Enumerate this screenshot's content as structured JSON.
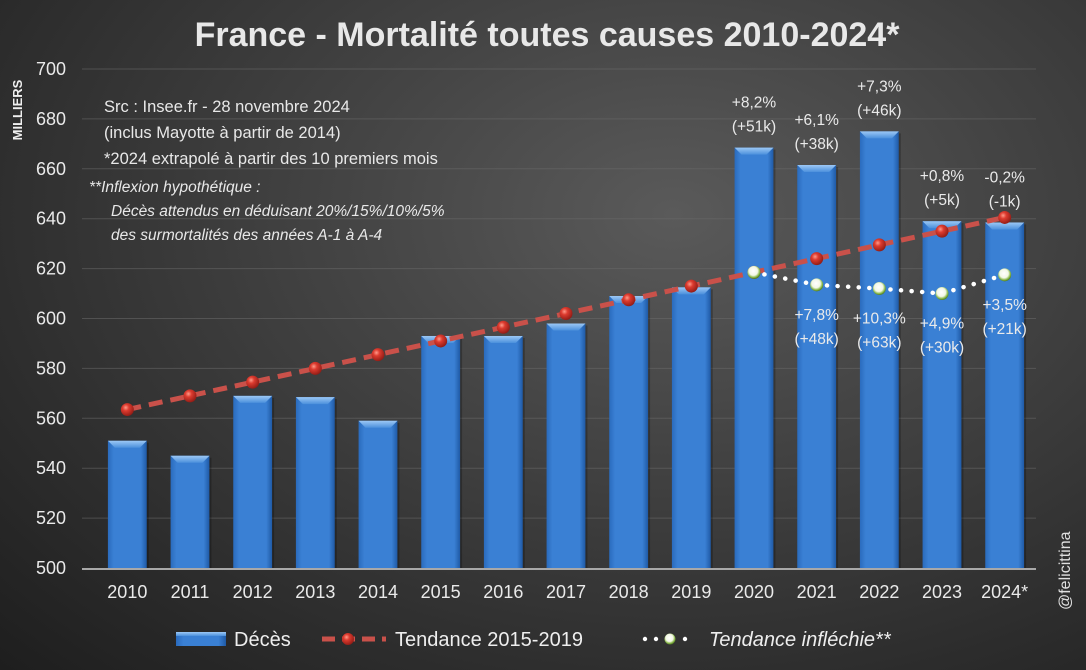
{
  "chart_data": {
    "type": "bar",
    "title": "France - Mortalité toutes causes 2010-2024*",
    "ylabel": "MILLIERS",
    "xlabel": "",
    "ylim": [
      500,
      700
    ],
    "yticks": [
      500,
      520,
      540,
      560,
      580,
      600,
      620,
      640,
      660,
      680,
      700
    ],
    "grid": true,
    "categories": [
      "2010",
      "2011",
      "2012",
      "2013",
      "2014",
      "2015",
      "2016",
      "2017",
      "2018",
      "2019",
      "2020",
      "2021",
      "2022",
      "2023",
      "2024*"
    ],
    "series": [
      {
        "name": "Décès",
        "type": "bar",
        "color": "#3a7fd0",
        "values": [
          551,
          545,
          569,
          568.5,
          559,
          593,
          593,
          598,
          609,
          612.5,
          668.5,
          661.5,
          675,
          639,
          638.5
        ]
      },
      {
        "name": "Tendance 2015-2019",
        "type": "line",
        "style": "dashed",
        "color": "#c9514a",
        "marker_color": "#d8382f",
        "values": [
          563.5,
          569,
          574.5,
          580,
          585.5,
          591,
          596.5,
          602,
          607.5,
          613,
          618.5,
          624,
          629.5,
          635,
          640.5
        ]
      },
      {
        "name": "Tendance infléchie**",
        "type": "line",
        "style": "dotted",
        "color": "#ffffff",
        "marker_color": "#e8f5d0",
        "x_start_index": 10,
        "values": [
          618.5,
          613.5,
          612,
          610,
          617.5
        ]
      }
    ],
    "annotations_above": [
      {
        "category": "2020",
        "pct": "+8,2%",
        "abs": "(+51k)"
      },
      {
        "category": "2021",
        "pct": "+6,1%",
        "abs": "(+38k)"
      },
      {
        "category": "2022",
        "pct": "+7,3%",
        "abs": "(+46k)"
      },
      {
        "category": "2023",
        "pct": "+0,8%",
        "abs": "(+5k)"
      },
      {
        "category": "2024*",
        "pct": "-0,2%",
        "abs": "(-1k)"
      }
    ],
    "annotations_below": [
      {
        "category": "2021",
        "pct": "+7,8%",
        "abs": "(+48k)"
      },
      {
        "category": "2022",
        "pct": "+10,3%",
        "abs": "(+63k)"
      },
      {
        "category": "2023",
        "pct": "+4,9%",
        "abs": "(+30k)"
      },
      {
        "category": "2024*",
        "pct": "+3,5%",
        "abs": "(+21k)"
      }
    ],
    "notes": [
      "Src : Insee.fr - 28 novembre 2024",
      "(inclus Mayotte à partir de 2014)",
      "*2024 extrapolé à partir des 10 premiers mois"
    ],
    "italic_notes": [
      "**Inflexion hypothétique :",
      "Décès attendus en déduisant 20%/15%/10%/5%",
      "des surmortalités des années A-1 à A-4"
    ],
    "legend": {
      "position": "bottom",
      "entries": [
        "Décès",
        "Tendance 2015-2019",
        "Tendance infléchie**"
      ]
    },
    "credit": "@felicittina"
  }
}
